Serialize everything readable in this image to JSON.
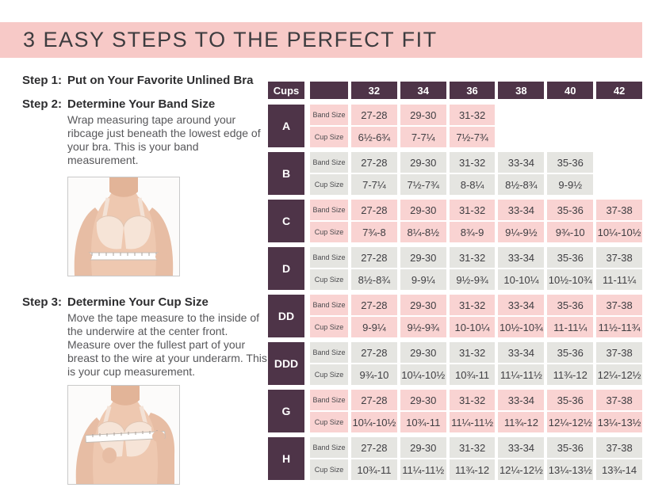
{
  "header": {
    "title": "3 EASY STEPS TO THE PERFECT FIT"
  },
  "steps": [
    {
      "label": "Step 1:",
      "title": "Put on Your Favorite Unlined Bra",
      "body": ""
    },
    {
      "label": "Step 2:",
      "title": "Determine Your Band Size",
      "body": "Wrap measuring tape around your ribcage just beneath the lowest edge of your bra. This is your band measurement."
    },
    {
      "label": "Step 3:",
      "title": "Determine Your Cup Size",
      "body": "Move the tape measure to the inside of the underwire at the center front. Measure over the fullest part of your breast to the wire at your underarm. This is your cup measurement."
    }
  ],
  "images": {
    "band_photo": "woman-wearing-bra-measuring-under-bust",
    "cup_photo": "woman-wearing-bra-measuring-over-bust"
  },
  "table": {
    "corner_label": "Cups",
    "band_sizes": [
      "32",
      "34",
      "36",
      "38",
      "40",
      "42"
    ],
    "row_labels": {
      "band": "Band Size",
      "cup": "Cup Size"
    },
    "rows": [
      {
        "cup": "A",
        "tone": "pink",
        "band": [
          "27-28",
          "29-30",
          "31-32",
          "",
          "",
          ""
        ],
        "cup_values": [
          "6½-6¾",
          "7-7¼",
          "7½-7¾",
          "",
          "",
          ""
        ]
      },
      {
        "cup": "B",
        "tone": "gray",
        "band": [
          "27-28",
          "29-30",
          "31-32",
          "33-34",
          "35-36",
          ""
        ],
        "cup_values": [
          "7-7¼",
          "7½-7¾",
          "8-8¼",
          "8½-8¾",
          "9-9½",
          ""
        ]
      },
      {
        "cup": "C",
        "tone": "pink",
        "band": [
          "27-28",
          "29-30",
          "31-32",
          "33-34",
          "35-36",
          "37-38"
        ],
        "cup_values": [
          "7¾-8",
          "8¼-8½",
          "8¾-9",
          "9¼-9½",
          "9¾-10",
          "10¼-10½"
        ]
      },
      {
        "cup": "D",
        "tone": "gray",
        "band": [
          "27-28",
          "29-30",
          "31-32",
          "33-34",
          "35-36",
          "37-38"
        ],
        "cup_values": [
          "8½-8¾",
          "9-9¼",
          "9½-9¾",
          "10-10¼",
          "10½-10¾",
          "11-11¼"
        ]
      },
      {
        "cup": "DD",
        "tone": "pink",
        "band": [
          "27-28",
          "29-30",
          "31-32",
          "33-34",
          "35-36",
          "37-38"
        ],
        "cup_values": [
          "9-9¼",
          "9½-9¾",
          "10-10¼",
          "10½-10¾",
          "11-11¼",
          "11½-11¾"
        ]
      },
      {
        "cup": "DDD",
        "tone": "gray",
        "band": [
          "27-28",
          "29-30",
          "31-32",
          "33-34",
          "35-36",
          "37-38"
        ],
        "cup_values": [
          "9¾-10",
          "10¼-10½",
          "10¾-11",
          "11¼-11½",
          "11¾-12",
          "12¼-12½"
        ]
      },
      {
        "cup": "G",
        "tone": "pink",
        "band": [
          "27-28",
          "29-30",
          "31-32",
          "33-34",
          "35-36",
          "37-38"
        ],
        "cup_values": [
          "10¼-10½",
          "10¾-11",
          "11¼-11½",
          "11¾-12",
          "12¼-12½",
          "13¼-13½"
        ]
      },
      {
        "cup": "H",
        "tone": "gray",
        "band": [
          "27-28",
          "29-30",
          "31-32",
          "33-34",
          "35-36",
          "37-38"
        ],
        "cup_values": [
          "10¾-11",
          "11¼-11½",
          "11¾-12",
          "12¼-12½",
          "13¼-13½",
          "13¾-14"
        ]
      }
    ]
  },
  "colors": {
    "banner_pink": "#f7c9c7",
    "cell_pink": "#f9d3d2",
    "cell_gray": "#e5e5e1",
    "dark_plum": "#4e3448",
    "heading_text": "#3d3c3f",
    "body_text": "#57575a"
  }
}
